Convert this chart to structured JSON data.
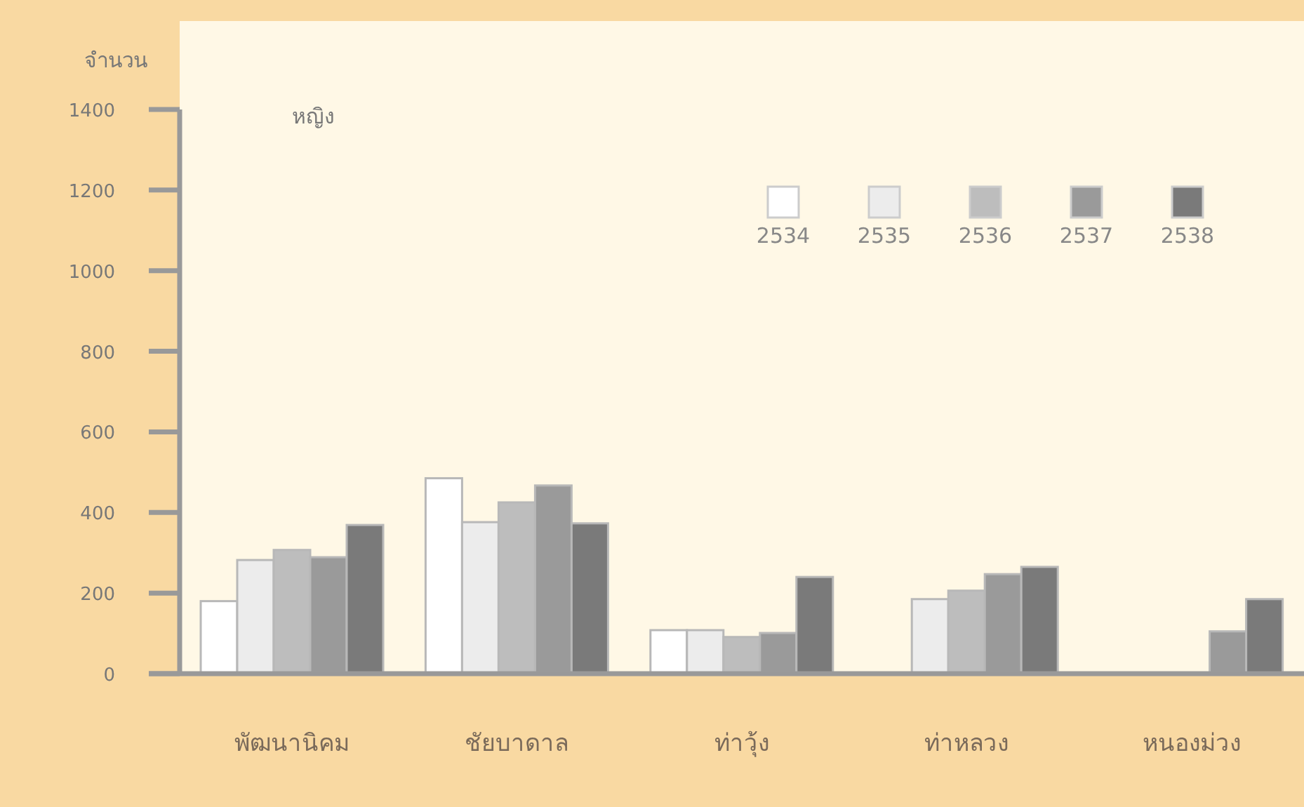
{
  "chart_data": {
    "type": "bar",
    "title": "หญิง",
    "ylabel": "จำนวน",
    "categories": [
      "พัฒนานิคม",
      "ชัยบาดาล",
      "ท่าวุ้ง",
      "ท่าหลวง",
      "หนองม่วง"
    ],
    "series": [
      {
        "name": "2534",
        "color": "#ffffff",
        "values": [
          180,
          485,
          108,
          null,
          null
        ]
      },
      {
        "name": "2535",
        "color": "#ececec",
        "values": [
          282,
          376,
          108,
          185,
          null
        ]
      },
      {
        "name": "2536",
        "color": "#bdbdbd",
        "values": [
          307,
          425,
          91,
          206,
          null
        ]
      },
      {
        "name": "2537",
        "color": "#9a9a9a",
        "values": [
          289,
          467,
          101,
          247,
          105
        ]
      },
      {
        "name": "2538",
        "color": "#7a7a7a",
        "values": [
          369,
          373,
          240,
          265,
          185
        ]
      }
    ],
    "ylim": [
      0,
      1400
    ],
    "yticks": [
      0,
      200,
      400,
      600,
      800,
      1000,
      1200,
      1400
    ],
    "grid": false,
    "legend": "top right"
  }
}
